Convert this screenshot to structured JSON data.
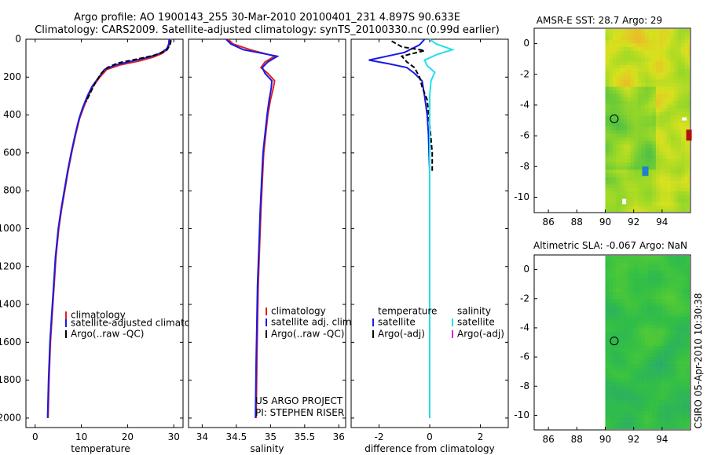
{
  "figure": {
    "title_line1": "Argo profile: AO 1900143_255 30-Mar-2010 20100401_231 4.897S 90.633E",
    "title_line2": "Climatology: CARS2009. Satellite-adjusted climatology: synTS_20100330.nc (0.99d earlier)",
    "credit": "CSIRO 05-Apr-2010 10:30:38",
    "project_line1": "US ARGO PROJECT",
    "project_line2": "PI: STEPHEN RISER"
  },
  "colors": {
    "climatology": "#e02020",
    "satellite": "#1a1ae6",
    "argo": "#000000",
    "salinity_satellite": "#22e0e8",
    "salinity_argo": "#e020e0"
  },
  "chart_data": [
    {
      "type": "line",
      "id": "temperature",
      "xlabel": "temperature",
      "ylabel": "",
      "xlim": [
        -2,
        32
      ],
      "ylim": [
        2050,
        0
      ],
      "xticks": [
        0,
        10,
        20,
        30
      ],
      "yticks": [
        0,
        200,
        400,
        600,
        800,
        1000,
        1200,
        1400,
        1600,
        1800,
        2000
      ],
      "legend": [
        "climatology",
        "satellite-adjusted climatology",
        "Argo(..raw -QC)"
      ],
      "series": [
        {
          "name": "climatology",
          "color": "#e02020",
          "x": [
            29.2,
            29.1,
            28.7,
            27.5,
            25.5,
            22.5,
            18.5,
            15.5,
            14.0,
            12.5,
            11.5,
            10.5,
            9.6,
            8.8,
            7.9,
            7.1,
            6.4,
            5.7,
            5.1,
            4.5,
            4.1,
            3.7,
            3.3,
            3.0,
            2.8
          ],
          "y": [
            0,
            25,
            50,
            75,
            95,
            115,
            135,
            160,
            200,
            250,
            300,
            360,
            420,
            500,
            600,
            700,
            800,
            900,
            1000,
            1150,
            1300,
            1450,
            1600,
            1800,
            2000
          ]
        },
        {
          "name": "satellite-adjusted climatology",
          "color": "#1a1ae6",
          "x": [
            29.0,
            28.9,
            28.5,
            27.0,
            24.5,
            21.0,
            17.5,
            15.0,
            13.8,
            12.3,
            11.3,
            10.3,
            9.5,
            8.7,
            7.8,
            7.0,
            6.3,
            5.6,
            5.0,
            4.4,
            4.0,
            3.6,
            3.2,
            2.9,
            2.7
          ],
          "y": [
            0,
            25,
            50,
            75,
            95,
            115,
            135,
            160,
            200,
            250,
            300,
            360,
            420,
            500,
            600,
            700,
            800,
            900,
            1000,
            1150,
            1300,
            1450,
            1600,
            1800,
            2000
          ]
        },
        {
          "name": "Argo(..raw -QC)",
          "color": "#000000",
          "x": [
            29.4,
            29.2,
            28.4,
            25.8,
            22.0,
            18.0,
            15.6,
            14.3,
            13.0,
            12.0,
            11.0
          ],
          "y": [
            5,
            30,
            60,
            85,
            105,
            125,
            150,
            180,
            230,
            280,
            330
          ]
        }
      ]
    },
    {
      "type": "line",
      "id": "salinity",
      "xlabel": "salinity",
      "ylabel": "",
      "xlim": [
        33.8,
        36.1
      ],
      "ylim": [
        2050,
        0
      ],
      "xticks": [
        34,
        34.5,
        35,
        35.5,
        36
      ],
      "yticks": [
        0,
        200,
        400,
        600,
        800,
        1000,
        1200,
        1400,
        1600,
        1800,
        2000
      ],
      "legend": [
        "climatology",
        "satellite adj. clim.",
        "Argo(..raw -QC)"
      ],
      "series": [
        {
          "name": "climatology",
          "color": "#e02020",
          "x": [
            34.38,
            34.45,
            34.7,
            35.06,
            34.92,
            34.86,
            34.96,
            35.06,
            35.04,
            35.0,
            34.96,
            34.93,
            34.9,
            34.88,
            34.86,
            34.84,
            34.82,
            34.81,
            34.8,
            34.79
          ],
          "y": [
            0,
            25,
            55,
            90,
            120,
            150,
            180,
            220,
            260,
            320,
            400,
            500,
            600,
            750,
            900,
            1100,
            1300,
            1500,
            1700,
            2000
          ]
        },
        {
          "name": "satellite adj. clim.",
          "color": "#1a1ae6",
          "x": [
            34.35,
            34.42,
            34.6,
            35.1,
            34.96,
            34.88,
            34.92,
            35.02,
            35.01,
            34.98,
            34.95,
            34.92,
            34.89,
            34.87,
            34.85,
            34.83,
            34.81,
            34.8,
            34.79,
            34.78
          ],
          "y": [
            0,
            25,
            55,
            90,
            120,
            150,
            180,
            220,
            260,
            320,
            400,
            500,
            600,
            750,
            900,
            1100,
            1300,
            1500,
            1700,
            2000
          ]
        }
      ]
    },
    {
      "type": "line",
      "id": "difference",
      "xlabel": "difference from climatology",
      "ylabel": "",
      "xlim": [
        -3.1,
        3.1
      ],
      "ylim": [
        2050,
        0
      ],
      "xticks": [
        -2,
        0,
        2
      ],
      "yticks": [
        0,
        200,
        400,
        600,
        800,
        1000,
        1200,
        1400,
        1600,
        1800,
        2000
      ],
      "legend_headers": [
        "temperature",
        "salinity"
      ],
      "legend": [
        "satellite",
        "Argo(-adj)",
        "satellite",
        "Argo(-adj)"
      ],
      "series": [
        {
          "name": "temperature satellite",
          "color": "#1a1ae6",
          "x": [
            -0.2,
            -0.4,
            -1.0,
            -2.4,
            -1.6,
            -0.9,
            -0.6,
            -0.3,
            -0.2,
            -0.1,
            -0.05,
            0.0,
            0.0,
            0.0,
            0.0
          ],
          "y": [
            0,
            30,
            70,
            110,
            130,
            150,
            180,
            220,
            300,
            400,
            500,
            700,
            1000,
            1500,
            2000
          ]
        },
        {
          "name": "temperature Argo(-adj)",
          "color": "#000000",
          "x": [
            -1.5,
            -1.1,
            -0.2,
            -1.1,
            -0.9,
            -0.6,
            -0.4,
            -0.3,
            -0.1,
            0.0,
            0.1,
            0.1
          ],
          "y": [
            10,
            40,
            60,
            90,
            120,
            150,
            200,
            250,
            320,
            450,
            600,
            700
          ]
        },
        {
          "name": "salinity satellite",
          "color": "#22e0e8",
          "x": [
            0.0,
            0.25,
            0.9,
            0.3,
            -0.2,
            -0.1,
            0.2,
            0.05,
            0.0,
            0.0,
            0.0,
            0.0,
            0.0
          ],
          "y": [
            0,
            25,
            55,
            80,
            110,
            140,
            175,
            220,
            300,
            400,
            700,
            1200,
            2000
          ]
        }
      ]
    },
    {
      "type": "heatmap",
      "id": "sst",
      "title": "AMSR-E SST: 28.7 Argo: 29",
      "xlim": [
        85,
        96
      ],
      "ylim": [
        -11,
        1
      ],
      "xticks": [
        86,
        88,
        90,
        92,
        94
      ],
      "yticks": [
        0,
        -2,
        -4,
        -6,
        -8,
        -10
      ],
      "marker": [
        90.633,
        -4.897
      ],
      "data_lon_range": [
        90,
        96
      ],
      "colormap": "sst"
    },
    {
      "type": "heatmap",
      "id": "sla",
      "title": "Altimetric SLA: -0.067 Argo: NaN",
      "xlim": [
        85,
        96
      ],
      "ylim": [
        -11,
        1
      ],
      "xticks": [
        86,
        88,
        90,
        92,
        94
      ],
      "yticks": [
        0,
        -2,
        -4,
        -6,
        -8,
        -10
      ],
      "marker": [
        90.633,
        -4.897
      ],
      "data_lon_range": [
        90,
        96
      ],
      "colormap": "sla"
    }
  ]
}
